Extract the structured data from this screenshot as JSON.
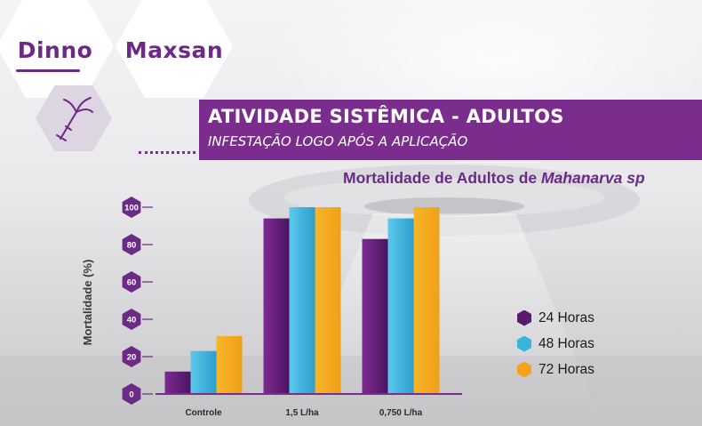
{
  "logos": {
    "left": "Dinno",
    "right": "Maxsan"
  },
  "icons": {
    "crop_icon": "sugarcane-plant-icon"
  },
  "banner": {
    "title": "ATIVIDADE SISTÊMICA - ADULTOS",
    "subtitle": "INFESTAÇÃO LOGO APÓS A APLICAÇÃO"
  },
  "chart_title": {
    "prefix": "Mortalidade de Adultos de ",
    "species": "Mahanarva sp"
  },
  "colors": {
    "brand_purple": "#7b2d8e",
    "series_24h": "#5a1a6e",
    "series_48h": "#38b4dc",
    "series_72h": "#f5a21c"
  },
  "chart_data": {
    "type": "bar",
    "ylabel": "Mortalidade (%)",
    "xlabel": "",
    "ylim": [
      0,
      100
    ],
    "yticks": [
      0,
      20,
      40,
      60,
      80,
      100
    ],
    "grid": false,
    "legend_position": "right",
    "categories": [
      "Controle",
      "1,5 L/ha",
      "0,750 L/ha"
    ],
    "series": [
      {
        "name": "24 Horas",
        "values": [
          12,
          94,
          83
        ]
      },
      {
        "name": "48 Horas",
        "values": [
          23,
          100,
          94
        ]
      },
      {
        "name": "72 Horas",
        "values": [
          31,
          100,
          100
        ]
      }
    ]
  }
}
